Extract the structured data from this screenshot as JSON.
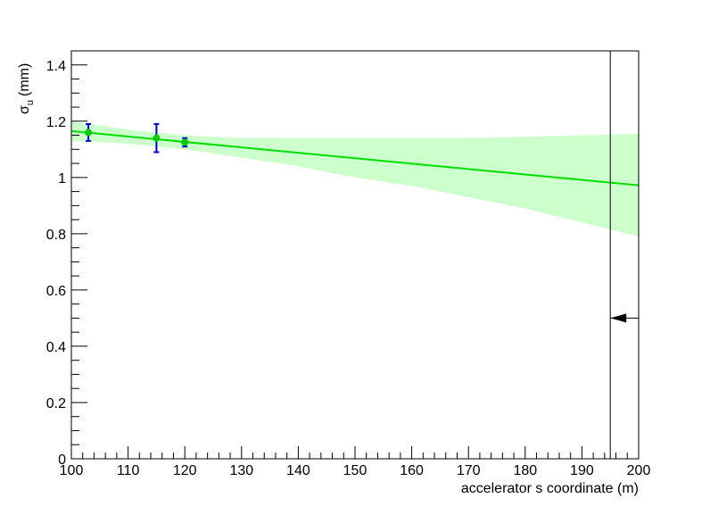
{
  "chart_data": {
    "type": "scatter",
    "xlabel": "accelerator s coordinate (m)",
    "ylabel": {
      "symbol": "σ",
      "subscript": "u",
      "unit": "(mm)"
    },
    "xlim": [
      100,
      200
    ],
    "ylim": [
      0,
      1.45
    ],
    "xticks": [
      100,
      110,
      120,
      130,
      140,
      150,
      160,
      170,
      180,
      190,
      200
    ],
    "yticks": [
      0,
      0.2,
      0.4,
      0.6,
      0.8,
      1,
      1.2,
      1.4
    ],
    "band": {
      "color": "#ccffcc",
      "x": [
        100,
        110,
        120,
        130,
        140,
        150,
        160,
        170,
        180,
        190,
        200
      ],
      "upper": [
        1.2,
        1.17,
        1.15,
        1.14,
        1.14,
        1.14,
        1.14,
        1.14,
        1.145,
        1.15,
        1.155
      ],
      "lower": [
        1.13,
        1.12,
        1.1,
        1.07,
        1.04,
        1.0,
        0.97,
        0.93,
        0.89,
        0.84,
        0.79
      ]
    },
    "fit": {
      "color": "#00dd00",
      "x": [
        100,
        200
      ],
      "values": [
        1.165,
        0.972
      ]
    },
    "points": {
      "color": "#00cc00",
      "error_color": "#0000cc",
      "x": [
        103,
        115,
        120
      ],
      "values": [
        1.16,
        1.14,
        1.125
      ],
      "errors": [
        0.03,
        0.05,
        0.015
      ]
    },
    "marker_line": {
      "x": 195,
      "color": "#000000"
    },
    "arrow": {
      "y": 0.5,
      "color": "#000000"
    }
  }
}
